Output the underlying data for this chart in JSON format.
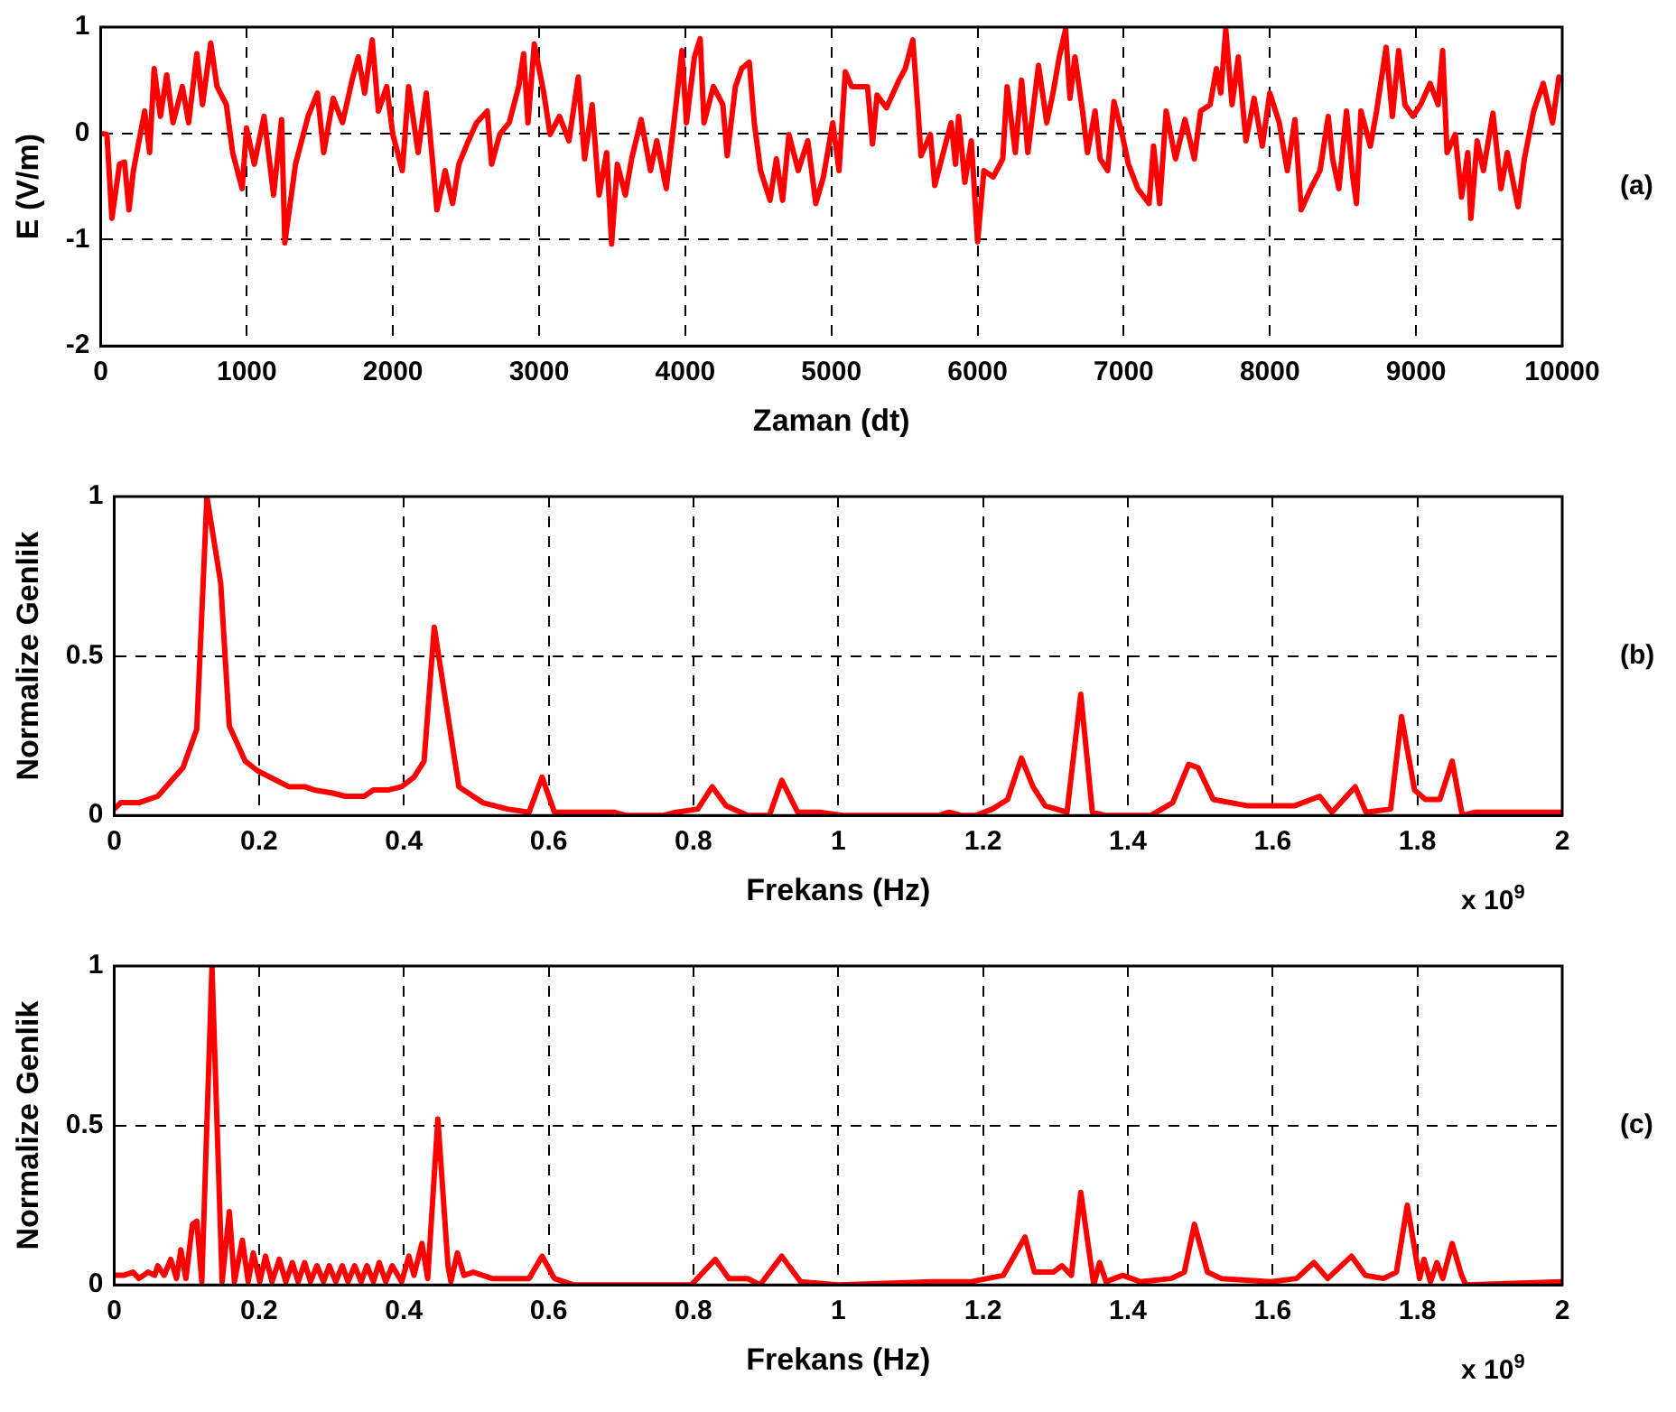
{
  "chart_data": [
    {
      "type": "line",
      "xlabel": "Zaman (dt)",
      "ylabel": "E (V/m)",
      "annotations": [
        "(a)"
      ],
      "xlim": [
        0,
        10000
      ],
      "xticks": [
        0,
        1000,
        2000,
        3000,
        4000,
        5000,
        6000,
        7000,
        8000,
        9000,
        10000
      ],
      "ylim": [
        -2,
        1
      ],
      "yticks": [
        -2,
        -1,
        0,
        1
      ],
      "grid": true,
      "line_style": "solid",
      "marker": "none",
      "series": [
        {
          "color": "#ff0000",
          "x": [
            0,
            43,
            77,
            129,
            163,
            194,
            224,
            301,
            335,
            366,
            409,
            452,
            495,
            559,
            602,
            658,
            697,
            753,
            796,
            860,
            903,
            968,
            998,
            1051,
            1118,
            1183,
            1238,
            1260,
            1333,
            1419,
            1483,
            1526,
            1591,
            1655,
            1720,
            1763,
            1806,
            1858,
            1900,
            1957,
            1999,
            2064,
            2107,
            2172,
            2228,
            2301,
            2357,
            2408,
            2451,
            2516,
            2572,
            2645,
            2675,
            2730,
            2795,
            2860,
            2894,
            2924,
            2967,
            3032,
            3075,
            3139,
            3204,
            3268,
            3311,
            3363,
            3410,
            3462,
            3496,
            3535,
            3590,
            3633,
            3698,
            3762,
            3805,
            3870,
            3934,
            3977,
            4008,
            4063,
            4102,
            4128,
            4192,
            4257,
            4287,
            4343,
            4386,
            4438,
            4472,
            4515,
            4580,
            4623,
            4666,
            4709,
            4773,
            4838,
            4893,
            4945,
            5009,
            5052,
            5095,
            5138,
            5203,
            5247,
            5281,
            5312,
            5376,
            5462,
            5505,
            5557,
            5591,
            5613,
            5677,
            5707,
            5754,
            5819,
            5849,
            5870,
            5913,
            5957,
            6000,
            6043,
            6107,
            6172,
            6202,
            6258,
            6301,
            6344,
            6417,
            6473,
            6516,
            6559,
            6602,
            6632,
            6666,
            6718,
            6752,
            6804,
            6838,
            6890,
            6933,
            6989,
            7032,
            7096,
            7173,
            7204,
            7246,
            7290,
            7354,
            7419,
            7483,
            7526,
            7591,
            7634,
            7664,
            7698,
            7741,
            7784,
            7836,
            7892,
            7948,
            7999,
            8064,
            8119,
            8171,
            8214,
            8279,
            8343,
            8399,
            8429,
            8472,
            8524,
            8567,
            8592,
            8623,
            8687,
            8730,
            8795,
            8838,
            8881,
            8924,
            8979,
            9031,
            9096,
            9151,
            9182,
            9212,
            9268,
            9311,
            9354,
            9375,
            9418,
            9461,
            9526,
            9581,
            9624,
            9698,
            9741,
            9805,
            9870,
            9934,
            9977,
            9999
          ],
          "values": [
            0,
            -0.01,
            -0.8,
            -0.29,
            -0.27,
            -0.72,
            -0.35,
            0.21,
            -0.18,
            0.61,
            0.16,
            0.55,
            0.1,
            0.44,
            0.1,
            0.75,
            0.27,
            0.85,
            0.44,
            0.27,
            -0.18,
            -0.52,
            0.05,
            -0.29,
            0.16,
            -0.58,
            0.13,
            -1.03,
            -0.29,
            0.16,
            0.38,
            -0.18,
            0.33,
            0.1,
            0.5,
            0.72,
            0.38,
            0.88,
            0.21,
            0.44,
            -0.01,
            -0.35,
            0.44,
            -0.18,
            0.38,
            -0.72,
            -0.35,
            -0.66,
            -0.29,
            -0.07,
            0.1,
            0.21,
            -0.29,
            -0.01,
            0.1,
            0.44,
            0.75,
            0.1,
            0.84,
            0.38,
            -0.01,
            0.16,
            -0.07,
            0.53,
            -0.24,
            0.27,
            -0.58,
            -0.18,
            -1.04,
            -0.29,
            -0.58,
            -0.24,
            0.13,
            -0.35,
            -0.07,
            -0.52,
            0.24,
            0.78,
            0.1,
            0.72,
            0.89,
            0.1,
            0.44,
            0.27,
            -0.21,
            0.44,
            0.61,
            0.67,
            0.1,
            -0.35,
            -0.63,
            -0.24,
            -0.63,
            -0.01,
            -0.35,
            -0.07,
            -0.66,
            -0.41,
            0.1,
            -0.35,
            0.58,
            0.44,
            0.44,
            0.44,
            -0.1,
            0.36,
            0.24,
            0.5,
            0.61,
            0.88,
            0.24,
            -0.21,
            -0.01,
            -0.49,
            -0.24,
            0.1,
            -0.29,
            0.16,
            -0.46,
            -0.07,
            -1.02,
            -0.35,
            -0.41,
            -0.24,
            0.44,
            -0.18,
            0.5,
            -0.18,
            0.64,
            0.1,
            0.38,
            0.72,
            0.98,
            0.33,
            0.72,
            0.21,
            -0.18,
            0.21,
            -0.24,
            -0.35,
            0.3,
            -0.01,
            -0.29,
            -0.52,
            -0.66,
            -0.12,
            -0.66,
            0.21,
            -0.24,
            0.13,
            -0.24,
            0.21,
            0.27,
            0.61,
            0.38,
            0.98,
            0.27,
            0.72,
            -0.07,
            0.33,
            -0.12,
            0.38,
            0.1,
            -0.35,
            0.13,
            -0.72,
            -0.52,
            -0.35,
            0.16,
            -0.24,
            -0.52,
            0.21,
            -0.41,
            -0.66,
            0.21,
            -0.12,
            0.21,
            0.81,
            0.16,
            0.78,
            0.27,
            0.16,
            0.27,
            0.47,
            0.27,
            0.78,
            -0.18,
            -0.01,
            -0.6,
            -0.18,
            -0.8,
            -0.07,
            -0.35,
            0.19,
            -0.52,
            -0.18,
            -0.69,
            -0.24,
            0.21,
            0.47,
            0.1,
            0.53,
            0.5
          ]
        }
      ]
    },
    {
      "type": "line",
      "xlabel": "Frekans (Hz)",
      "ylabel": "Normalize Genlik",
      "annotations": [
        "(b)",
        "x 10$^{9}$"
      ],
      "xlim": [
        0,
        2
      ],
      "xticks": [
        0,
        0.2,
        0.4,
        0.6,
        0.8,
        1,
        1.2,
        1.4,
        1.6,
        1.8,
        2
      ],
      "ylim": [
        0,
        1
      ],
      "yticks": [
        0,
        0.5,
        1
      ],
      "grid": true,
      "line_style": "solid",
      "marker": "none",
      "series": [
        {
          "color": "#ff0000",
          "x": [
            0,
            0.009,
            0.034,
            0.06,
            0.095,
            0.114,
            0.128,
            0.147,
            0.159,
            0.181,
            0.198,
            0.241,
            0.263,
            0.276,
            0.302,
            0.319,
            0.345,
            0.358,
            0.379,
            0.397,
            0.414,
            0.428,
            0.442,
            0.476,
            0.509,
            0.543,
            0.573,
            0.591,
            0.608,
            0.69,
            0.707,
            0.759,
            0.776,
            0.806,
            0.826,
            0.845,
            0.875,
            0.905,
            0.922,
            0.944,
            0.974,
            1.0065,
            1.14,
            1.153,
            1.17,
            1.19,
            1.213,
            1.234,
            1.253,
            1.269,
            1.286,
            1.316,
            1.335,
            1.351,
            1.368,
            1.432,
            1.462,
            1.484,
            1.497,
            1.518,
            1.566,
            1.63,
            1.665,
            1.682,
            1.714,
            1.729,
            1.763,
            1.778,
            1.796,
            1.811,
            1.831,
            1.848,
            1.862,
            1.88,
            2
          ],
          "values": [
            0.02,
            0.04,
            0.04,
            0.06,
            0.15,
            0.27,
            1,
            0.73,
            0.28,
            0.17,
            0.14,
            0.09,
            0.09,
            0.08,
            0.07,
            0.06,
            0.06,
            0.08,
            0.08,
            0.09,
            0.12,
            0.17,
            0.59,
            0.09,
            0.04,
            0.02,
            0.01,
            0.12,
            0.01,
            0.01,
            0,
            0,
            0.01,
            0.02,
            0.09,
            0.03,
            0,
            0,
            0.11,
            0.01,
            0.01,
            0,
            0,
            0.01,
            0,
            0,
            0.02,
            0.05,
            0.18,
            0.09,
            0.03,
            0.01,
            0.38,
            0.01,
            0,
            0,
            0.04,
            0.16,
            0.15,
            0.05,
            0.03,
            0.03,
            0.06,
            0.01,
            0.09,
            0.01,
            0.02,
            0.31,
            0.08,
            0.05,
            0.05,
            0.17,
            0,
            0.01,
            0.01
          ]
        }
      ]
    },
    {
      "type": "line",
      "xlabel": "Frekans (Hz)",
      "ylabel": "Normalize Genlik",
      "annotations": [
        "(c)",
        "x 10$^{9}$"
      ],
      "xlim": [
        0,
        2
      ],
      "xticks": [
        0,
        0.2,
        0.4,
        0.6,
        0.8,
        1,
        1.2,
        1.4,
        1.6,
        1.8,
        2
      ],
      "ylim": [
        0,
        1
      ],
      "yticks": [
        0,
        0.5,
        1
      ],
      "grid": true,
      "line_style": "solid",
      "marker": "none",
      "series": [
        {
          "color": "#ff0000",
          "x": [
            0,
            0.013,
            0.026,
            0.034,
            0.047,
            0.056,
            0.06,
            0.069,
            0.078,
            0.086,
            0.092,
            0.099,
            0.108,
            0.114,
            0.121,
            0.135,
            0.149,
            0.159,
            0.166,
            0.177,
            0.185,
            0.192,
            0.201,
            0.209,
            0.218,
            0.228,
            0.237,
            0.246,
            0.254,
            0.263,
            0.271,
            0.28,
            0.289,
            0.297,
            0.306,
            0.315,
            0.323,
            0.332,
            0.341,
            0.349,
            0.358,
            0.366,
            0.375,
            0.384,
            0.397,
            0.407,
            0.414,
            0.425,
            0.433,
            0.447,
            0.461,
            0.465,
            0.474,
            0.483,
            0.496,
            0.522,
            0.547,
            0.573,
            0.591,
            0.608,
            0.634,
            0.797,
            0.83,
            0.849,
            0.875,
            0.892,
            0.922,
            0.948,
            1,
            1.133,
            1.184,
            1.228,
            1.258,
            1.271,
            1.297,
            1.309,
            1.322,
            1.335,
            1.353,
            1.361,
            1.37,
            1.393,
            1.417,
            1.46,
            1.478,
            1.492,
            1.51,
            1.529,
            1.598,
            1.633,
            1.657,
            1.676,
            1.709,
            1.728,
            1.753,
            1.771,
            1.786,
            1.803,
            1.809,
            1.818,
            1.827,
            1.835,
            1.848,
            1.861,
            1.867,
            2
          ],
          "values": [
            0.03,
            0.03,
            0.04,
            0.02,
            0.04,
            0.03,
            0.06,
            0.03,
            0.08,
            0.02,
            0.11,
            0.02,
            0.19,
            0.2,
            0.01,
            1,
            0.01,
            0.23,
            0.01,
            0.14,
            0.01,
            0.1,
            0.01,
            0.09,
            0.01,
            0.08,
            0.01,
            0.07,
            0.01,
            0.07,
            0.01,
            0.06,
            0.01,
            0.06,
            0.01,
            0.06,
            0.01,
            0.06,
            0.01,
            0.06,
            0.01,
            0.07,
            0.01,
            0.06,
            0.01,
            0.09,
            0.03,
            0.13,
            0.02,
            0.52,
            0.06,
            0.01,
            0.1,
            0.03,
            0.04,
            0.02,
            0.02,
            0.02,
            0.09,
            0.02,
            0,
            0,
            0.08,
            0.02,
            0.02,
            0,
            0.09,
            0.01,
            0,
            0.01,
            0.01,
            0.03,
            0.15,
            0.04,
            0.04,
            0.06,
            0.03,
            0.29,
            0,
            0.07,
            0.01,
            0.03,
            0.01,
            0.02,
            0.04,
            0.19,
            0.04,
            0.02,
            0.01,
            0.02,
            0.07,
            0.02,
            0.09,
            0.03,
            0.02,
            0.04,
            0.25,
            0.02,
            0.08,
            0.01,
            0.07,
            0.02,
            0.13,
            0.03,
            0,
            0.01
          ]
        }
      ]
    }
  ]
}
